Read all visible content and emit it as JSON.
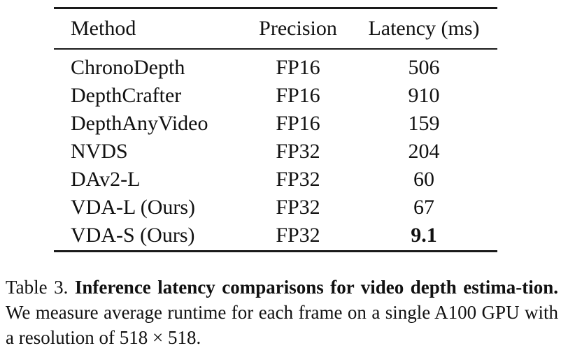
{
  "table": {
    "headers": [
      "Method",
      "Precision",
      "Latency (ms)"
    ],
    "rows": [
      {
        "method": "ChronoDepth",
        "precision": "FP16",
        "latency": "506"
      },
      {
        "method": "DepthCrafter",
        "precision": "FP16",
        "latency": "910"
      },
      {
        "method": "DepthAnyVideo",
        "precision": "FP16",
        "latency": "159"
      },
      {
        "method": "NVDS",
        "precision": "FP32",
        "latency": "204"
      },
      {
        "method": "DAv2-L",
        "precision": "FP32",
        "latency": "60"
      },
      {
        "method": "VDA-L (Ours)",
        "precision": "FP32",
        "latency": "67"
      },
      {
        "method": "VDA-S (Ours)",
        "precision": "FP32",
        "latency": "9.1"
      }
    ]
  },
  "caption": {
    "label": "Table 3.",
    "title": "Inference latency comparisons for video depth estima-tion.",
    "text": "We measure average runtime for each frame on a single A100 GPU with a resolution of 518 × 518."
  }
}
